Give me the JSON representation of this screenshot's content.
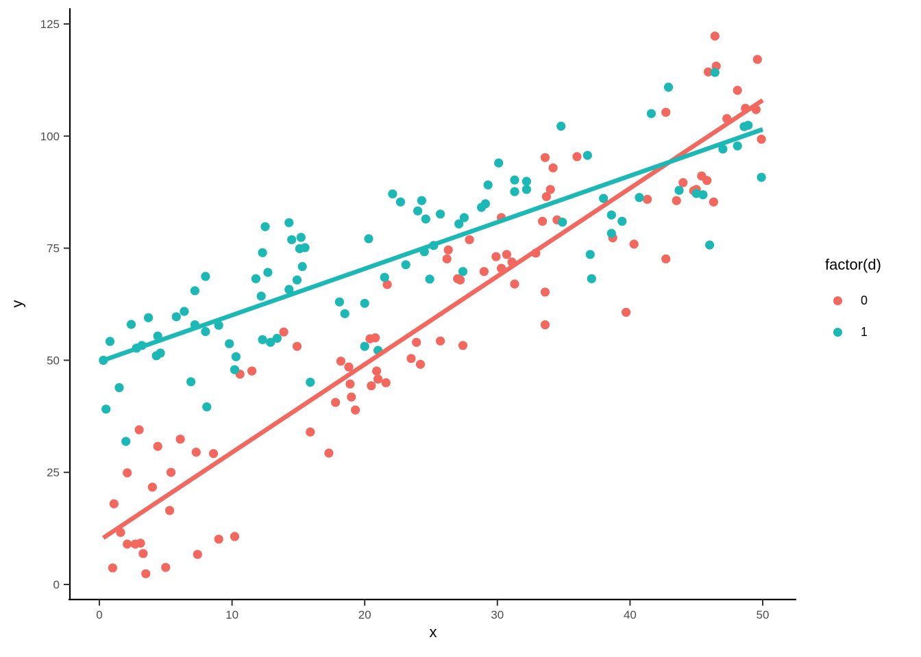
{
  "figure": {
    "xlabel": "x",
    "ylabel": "y"
  },
  "legend": {
    "title": "factor(d)",
    "items": [
      {
        "label": "0",
        "color": "#F3685E"
      },
      {
        "label": "1",
        "color": "#1CB8B5"
      }
    ]
  },
  "colors": {
    "series0": "#F3685E",
    "series1": "#1CB8B5",
    "axis_line": "#000000",
    "tick_mark": "#333333",
    "tick_label": "#4D4D4D",
    "background": "#FFFFFF"
  },
  "chart_data": {
    "type": "scatter",
    "title": "",
    "xlabel": "x",
    "ylabel": "y",
    "legend_title": "factor(d)",
    "legend_position": "right",
    "grid": false,
    "xlim": [
      -2.2,
      52.4
    ],
    "ylim": [
      -3.4,
      128.6
    ],
    "x_ticks": [
      0,
      10,
      20,
      30,
      40,
      50
    ],
    "y_ticks": [
      0,
      25,
      50,
      75,
      100,
      125
    ],
    "series": [
      {
        "name": "0",
        "color": "#F3685E",
        "points": [
          [
            33.6,
            95.2
          ],
          [
            34.2,
            92.9
          ],
          [
            46.4,
            122.3
          ],
          [
            49.6,
            117.1
          ],
          [
            45.9,
            114.3
          ],
          [
            46.5,
            115.6
          ],
          [
            48.1,
            110.2
          ],
          [
            42.7,
            105.3
          ],
          [
            48.7,
            106.2
          ],
          [
            49.5,
            105.9
          ],
          [
            47.3,
            103.9
          ],
          [
            49.9,
            99.3
          ],
          [
            44.0,
            89.6
          ],
          [
            44.8,
            87.8
          ],
          [
            45.4,
            91.1
          ],
          [
            45.8,
            90.1
          ],
          [
            46.3,
            85.3
          ],
          [
            43.5,
            85.6
          ],
          [
            36.0,
            95.4
          ],
          [
            41.3,
            85.9
          ],
          [
            34.5,
            81.3
          ],
          [
            38.7,
            77.3
          ],
          [
            40.3,
            75.9
          ],
          [
            42.7,
            72.6
          ],
          [
            33.4,
            81.0
          ],
          [
            30.3,
            81.8
          ],
          [
            33.7,
            86.5
          ],
          [
            34.0,
            88.1
          ],
          [
            27.9,
            76.9
          ],
          [
            26.3,
            74.6
          ],
          [
            26.2,
            72.6
          ],
          [
            29.9,
            73.1
          ],
          [
            30.7,
            73.6
          ],
          [
            31.1,
            71.9
          ],
          [
            30.3,
            70.5
          ],
          [
            32.9,
            73.9
          ],
          [
            27.0,
            68.2
          ],
          [
            27.2,
            67.9
          ],
          [
            29.0,
            69.8
          ],
          [
            31.3,
            67.0
          ],
          [
            33.6,
            65.2
          ],
          [
            33.6,
            57.9
          ],
          [
            21.7,
            66.9
          ],
          [
            39.7,
            60.7
          ],
          [
            20.4,
            54.8
          ],
          [
            20.8,
            55.0
          ],
          [
            23.9,
            54.0
          ],
          [
            25.7,
            54.3
          ],
          [
            27.4,
            53.3
          ],
          [
            23.5,
            50.4
          ],
          [
            24.2,
            49.1
          ],
          [
            18.2,
            49.8
          ],
          [
            18.8,
            48.5
          ],
          [
            20.9,
            47.6
          ],
          [
            21.0,
            45.8
          ],
          [
            21.6,
            45.0
          ],
          [
            20.5,
            44.3
          ],
          [
            18.9,
            44.7
          ],
          [
            19.0,
            41.8
          ],
          [
            17.8,
            40.6
          ],
          [
            19.3,
            38.9
          ],
          [
            17.3,
            29.3
          ],
          [
            15.9,
            34.0
          ],
          [
            13.9,
            56.3
          ],
          [
            14.9,
            53.1
          ],
          [
            10.6,
            46.9
          ],
          [
            11.5,
            47.6
          ],
          [
            3.0,
            34.5
          ],
          [
            2.1,
            24.9
          ],
          [
            4.4,
            30.8
          ],
          [
            6.1,
            32.4
          ],
          [
            5.4,
            25.0
          ],
          [
            7.3,
            29.5
          ],
          [
            8.6,
            29.2
          ],
          [
            4.0,
            21.7
          ],
          [
            1.1,
            18.0
          ],
          [
            5.3,
            16.5
          ],
          [
            1.6,
            11.6
          ],
          [
            2.1,
            9.0
          ],
          [
            2.7,
            9.0
          ],
          [
            3.1,
            9.2
          ],
          [
            3.3,
            6.9
          ],
          [
            7.4,
            6.7
          ],
          [
            9.0,
            10.1
          ],
          [
            10.2,
            10.7
          ],
          [
            1.0,
            3.7
          ],
          [
            3.5,
            2.4
          ],
          [
            5.0,
            3.8
          ],
          [
            45.0,
            88.1
          ]
        ]
      },
      {
        "name": "1",
        "color": "#1CB8B5",
        "points": [
          [
            12.5,
            79.8
          ],
          [
            14.3,
            80.7
          ],
          [
            14.5,
            76.9
          ],
          [
            15.2,
            77.4
          ],
          [
            15.1,
            74.9
          ],
          [
            15.5,
            75.1
          ],
          [
            12.3,
            74.0
          ],
          [
            15.3,
            70.9
          ],
          [
            8.0,
            68.7
          ],
          [
            11.8,
            68.2
          ],
          [
            12.7,
            69.6
          ],
          [
            14.9,
            67.9
          ],
          [
            7.2,
            65.5
          ],
          [
            14.3,
            65.8
          ],
          [
            12.2,
            64.3
          ],
          [
            30.1,
            94.0
          ],
          [
            29.3,
            89.1
          ],
          [
            31.3,
            90.2
          ],
          [
            32.2,
            89.9
          ],
          [
            31.3,
            87.6
          ],
          [
            32.2,
            88.1
          ],
          [
            22.1,
            87.1
          ],
          [
            22.7,
            85.3
          ],
          [
            24.3,
            85.6
          ],
          [
            24.0,
            83.3
          ],
          [
            24.6,
            81.5
          ],
          [
            25.7,
            82.6
          ],
          [
            27.1,
            80.4
          ],
          [
            27.5,
            81.8
          ],
          [
            28.8,
            84.1
          ],
          [
            29.1,
            84.9
          ],
          [
            20.3,
            77.1
          ],
          [
            25.2,
            75.6
          ],
          [
            24.5,
            74.2
          ],
          [
            23.1,
            71.3
          ],
          [
            27.4,
            69.8
          ],
          [
            21.5,
            68.5
          ],
          [
            24.9,
            68.1
          ],
          [
            46.4,
            114.2
          ],
          [
            42.9,
            110.9
          ],
          [
            34.8,
            102.2
          ],
          [
            41.6,
            105.0
          ],
          [
            48.9,
            102.4
          ],
          [
            48.6,
            102.1
          ],
          [
            36.8,
            95.7
          ],
          [
            47.0,
            97.1
          ],
          [
            48.1,
            97.8
          ],
          [
            49.9,
            90.8
          ],
          [
            43.7,
            87.9
          ],
          [
            45.0,
            87.2
          ],
          [
            45.5,
            86.9
          ],
          [
            38.0,
            86.1
          ],
          [
            40.7,
            86.3
          ],
          [
            34.9,
            80.8
          ],
          [
            38.6,
            82.4
          ],
          [
            39.4,
            81.0
          ],
          [
            38.6,
            78.3
          ],
          [
            37.0,
            73.6
          ],
          [
            46.0,
            75.7
          ],
          [
            37.1,
            68.2
          ],
          [
            18.1,
            63.0
          ],
          [
            20.0,
            62.7
          ],
          [
            18.5,
            60.4
          ],
          [
            20.0,
            53.1
          ],
          [
            21.0,
            52.2
          ],
          [
            15.9,
            45.1
          ],
          [
            0.3,
            50.0
          ],
          [
            0.8,
            54.2
          ],
          [
            2.4,
            58.0
          ],
          [
            3.7,
            59.5
          ],
          [
            5.8,
            59.7
          ],
          [
            6.4,
            60.9
          ],
          [
            7.2,
            57.9
          ],
          [
            8.0,
            56.4
          ],
          [
            9.0,
            57.8
          ],
          [
            2.8,
            52.7
          ],
          [
            3.2,
            53.3
          ],
          [
            4.4,
            55.4
          ],
          [
            4.3,
            51.0
          ],
          [
            4.6,
            51.6
          ],
          [
            9.8,
            53.7
          ],
          [
            10.3,
            50.8
          ],
          [
            12.3,
            54.6
          ],
          [
            12.9,
            54.0
          ],
          [
            13.4,
            54.9
          ],
          [
            1.5,
            43.9
          ],
          [
            0.5,
            39.1
          ],
          [
            2.0,
            31.9
          ],
          [
            6.9,
            45.2
          ],
          [
            8.1,
            39.6
          ],
          [
            10.2,
            47.9
          ]
        ]
      }
    ],
    "regression_lines": [
      {
        "series": "0",
        "color": "#F3685E",
        "start": [
          0.3,
          10.4
        ],
        "end": [
          50.0,
          108.0
        ]
      },
      {
        "series": "1",
        "color": "#1CB8B5",
        "start": [
          0.3,
          50.0
        ],
        "end": [
          50.0,
          101.5
        ]
      }
    ]
  }
}
